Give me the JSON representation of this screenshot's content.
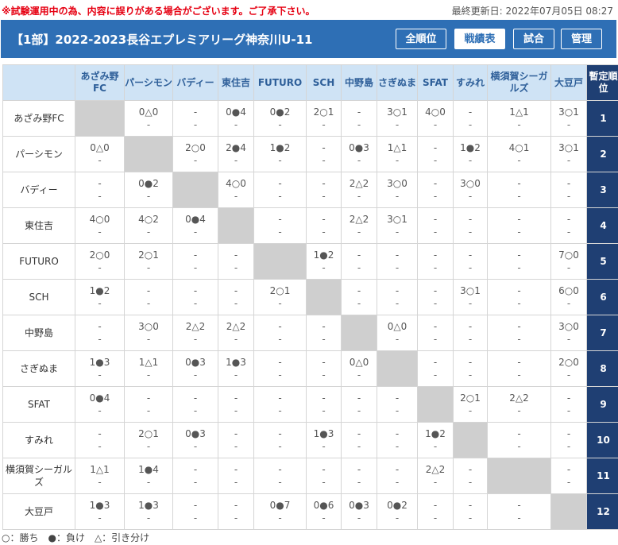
{
  "notice": "※試験運用中の為、内容に誤りがある場合がございます。ご了承下さい。",
  "updated": "最終更新日: 2022年07月05日 08:27",
  "header": {
    "title": "【1部】2022-2023長谷エプレミアリーグ神奈川U-11",
    "buttons": [
      "全順位",
      "戦績表",
      "試合",
      "管理"
    ]
  },
  "columns": [
    "あざみ野FC",
    "パーシモン",
    "バディー",
    "東住吉",
    "FUTURO",
    "SCH",
    "中野島",
    "さぎぬま",
    "SFAT",
    "すみれ",
    "横須賀シーガルズ",
    "大豆戸"
  ],
  "rank_header": "暫定順位",
  "rows": [
    {
      "team": "あざみ野FC",
      "rank": "1",
      "cells": [
        null,
        [
          "0△0",
          "-"
        ],
        [
          "-",
          "-"
        ],
        [
          "0●4",
          "-"
        ],
        [
          "0●2",
          "-"
        ],
        [
          "2○1",
          "-"
        ],
        [
          "-",
          "-"
        ],
        [
          "3○1",
          "-"
        ],
        [
          "4○0",
          "-"
        ],
        [
          "-",
          "-"
        ],
        [
          "1△1",
          "-"
        ],
        [
          "3○1",
          "-"
        ]
      ]
    },
    {
      "team": "パーシモン",
      "rank": "2",
      "cells": [
        [
          "0△0",
          "-"
        ],
        null,
        [
          "2○0",
          "-"
        ],
        [
          "2●4",
          "-"
        ],
        [
          "1●2",
          "-"
        ],
        [
          "-",
          "-"
        ],
        [
          "0●3",
          "-"
        ],
        [
          "1△1",
          "-"
        ],
        [
          "-",
          "-"
        ],
        [
          "1●2",
          "-"
        ],
        [
          "4○1",
          "-"
        ],
        [
          "3○1",
          "-"
        ]
      ]
    },
    {
      "team": "バディー",
      "rank": "3",
      "cells": [
        [
          "-",
          "-"
        ],
        [
          "0●2",
          "-"
        ],
        null,
        [
          "4○0",
          "-"
        ],
        [
          "-",
          "-"
        ],
        [
          "-",
          "-"
        ],
        [
          "2△2",
          "-"
        ],
        [
          "3○0",
          "-"
        ],
        [
          "-",
          "-"
        ],
        [
          "3○0",
          "-"
        ],
        [
          "-",
          "-"
        ],
        [
          "-",
          "-"
        ]
      ]
    },
    {
      "team": "東住吉",
      "rank": "4",
      "cells": [
        [
          "4○0",
          "-"
        ],
        [
          "4○2",
          "-"
        ],
        [
          "0●4",
          "-"
        ],
        null,
        [
          "-",
          "-"
        ],
        [
          "-",
          "-"
        ],
        [
          "2△2",
          "-"
        ],
        [
          "3○1",
          "-"
        ],
        [
          "-",
          "-"
        ],
        [
          "-",
          "-"
        ],
        [
          "-",
          "-"
        ],
        [
          "-",
          "-"
        ]
      ]
    },
    {
      "team": "FUTURO",
      "rank": "5",
      "cells": [
        [
          "2○0",
          "-"
        ],
        [
          "2○1",
          "-"
        ],
        [
          "-",
          "-"
        ],
        [
          "-",
          "-"
        ],
        null,
        [
          "1●2",
          "-"
        ],
        [
          "-",
          "-"
        ],
        [
          "-",
          "-"
        ],
        [
          "-",
          "-"
        ],
        [
          "-",
          "-"
        ],
        [
          "-",
          "-"
        ],
        [
          "7○0",
          "-"
        ]
      ]
    },
    {
      "team": "SCH",
      "rank": "6",
      "cells": [
        [
          "1●2",
          "-"
        ],
        [
          "-",
          "-"
        ],
        [
          "-",
          "-"
        ],
        [
          "-",
          "-"
        ],
        [
          "2○1",
          "-"
        ],
        null,
        [
          "-",
          "-"
        ],
        [
          "-",
          "-"
        ],
        [
          "-",
          "-"
        ],
        [
          "3○1",
          "-"
        ],
        [
          "-",
          "-"
        ],
        [
          "6○0",
          "-"
        ]
      ]
    },
    {
      "team": "中野島",
      "rank": "7",
      "cells": [
        [
          "-",
          "-"
        ],
        [
          "3○0",
          "-"
        ],
        [
          "2△2",
          "-"
        ],
        [
          "2△2",
          "-"
        ],
        [
          "-",
          "-"
        ],
        [
          "-",
          "-"
        ],
        null,
        [
          "0△0",
          "-"
        ],
        [
          "-",
          "-"
        ],
        [
          "-",
          "-"
        ],
        [
          "-",
          "-"
        ],
        [
          "3○0",
          "-"
        ]
      ]
    },
    {
      "team": "さぎぬま",
      "rank": "8",
      "cells": [
        [
          "1●3",
          "-"
        ],
        [
          "1△1",
          "-"
        ],
        [
          "0●3",
          "-"
        ],
        [
          "1●3",
          "-"
        ],
        [
          "-",
          "-"
        ],
        [
          "-",
          "-"
        ],
        [
          "0△0",
          "-"
        ],
        null,
        [
          "-",
          "-"
        ],
        [
          "-",
          "-"
        ],
        [
          "-",
          "-"
        ],
        [
          "2○0",
          "-"
        ]
      ]
    },
    {
      "team": "SFAT",
      "rank": "9",
      "cells": [
        [
          "0●4",
          "-"
        ],
        [
          "-",
          "-"
        ],
        [
          "-",
          "-"
        ],
        [
          "-",
          "-"
        ],
        [
          "-",
          "-"
        ],
        [
          "-",
          "-"
        ],
        [
          "-",
          "-"
        ],
        [
          "-",
          "-"
        ],
        null,
        [
          "2○1",
          "-"
        ],
        [
          "2△2",
          "-"
        ],
        [
          "-",
          "-"
        ]
      ]
    },
    {
      "team": "すみれ",
      "rank": "10",
      "cells": [
        [
          "-",
          "-"
        ],
        [
          "2○1",
          "-"
        ],
        [
          "0●3",
          "-"
        ],
        [
          "-",
          "-"
        ],
        [
          "-",
          "-"
        ],
        [
          "1●3",
          "-"
        ],
        [
          "-",
          "-"
        ],
        [
          "-",
          "-"
        ],
        [
          "1●2",
          "-"
        ],
        null,
        [
          "-",
          "-"
        ],
        [
          "-",
          "-"
        ]
      ]
    },
    {
      "team": "横須賀シーガルズ",
      "rank": "11",
      "cells": [
        [
          "1△1",
          "-"
        ],
        [
          "1●4",
          "-"
        ],
        [
          "-",
          "-"
        ],
        [
          "-",
          "-"
        ],
        [
          "-",
          "-"
        ],
        [
          "-",
          "-"
        ],
        [
          "-",
          "-"
        ],
        [
          "-",
          "-"
        ],
        [
          "2△2",
          "-"
        ],
        [
          "-",
          "-"
        ],
        null,
        [
          "-",
          "-"
        ]
      ]
    },
    {
      "team": "大豆戸",
      "rank": "12",
      "cells": [
        [
          "1●3",
          "-"
        ],
        [
          "1●3",
          "-"
        ],
        [
          "-",
          "-"
        ],
        [
          "-",
          "-"
        ],
        [
          "0●7",
          "-"
        ],
        [
          "0●6",
          "-"
        ],
        [
          "0●3",
          "-"
        ],
        [
          "0●2",
          "-"
        ],
        [
          "-",
          "-"
        ],
        [
          "-",
          "-"
        ],
        [
          "-",
          "-"
        ],
        null
      ]
    }
  ],
  "legend": "○：勝ち　●：負け　△：引き分け"
}
